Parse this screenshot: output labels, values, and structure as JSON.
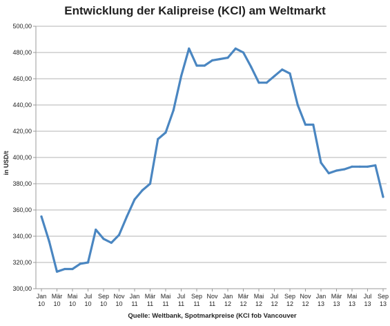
{
  "chart_data": {
    "type": "line",
    "title": "Entwicklung der Kalipreise (KCl) am Weltmarkt",
    "ylabel": "in USD/t",
    "xlabel": "",
    "source": "Quelle: Weltbank, Spotmarkpreise (KCl fob Vancouver",
    "ylim": [
      300,
      500
    ],
    "yticks": [
      "300,00",
      "320,00",
      "340,00",
      "360,00",
      "380,00",
      "400,00",
      "420,00",
      "440,00",
      "460,00",
      "480,00",
      "500,00"
    ],
    "grid": true,
    "legend": "none",
    "line_color": "#4a86c1",
    "x_tick_labels": [
      [
        "Jan",
        "10"
      ],
      [
        "Mär",
        "10"
      ],
      [
        "Mai",
        "10"
      ],
      [
        "Jul",
        "10"
      ],
      [
        "Sep",
        "10"
      ],
      [
        "Nov",
        "10"
      ],
      [
        "Jan",
        "11"
      ],
      [
        "Mär",
        "11"
      ],
      [
        "Mai",
        "11"
      ],
      [
        "Jul",
        "11"
      ],
      [
        "Sep",
        "11"
      ],
      [
        "Nov",
        "11"
      ],
      [
        "Jan",
        "12"
      ],
      [
        "Mär",
        "12"
      ],
      [
        "Mai",
        "12"
      ],
      [
        "Jul",
        "12"
      ],
      [
        "Sep",
        "12"
      ],
      [
        "Nov",
        "12"
      ],
      [
        "Jan",
        "13"
      ],
      [
        "Mär",
        "13"
      ],
      [
        "Mai",
        "13"
      ],
      [
        "Jul",
        "13"
      ],
      [
        "Sep",
        "13"
      ]
    ],
    "series": [
      {
        "values": [
          355,
          336,
          313,
          315,
          315,
          319,
          320,
          345,
          338,
          335,
          341,
          355,
          368,
          375,
          380,
          414,
          419,
          436,
          462,
          483,
          470,
          470,
          474,
          475,
          476,
          483,
          480,
          469,
          457,
          457,
          462,
          467,
          464,
          440,
          425,
          425,
          396,
          388,
          390,
          391,
          393,
          393,
          393,
          394,
          370
        ]
      }
    ]
  }
}
